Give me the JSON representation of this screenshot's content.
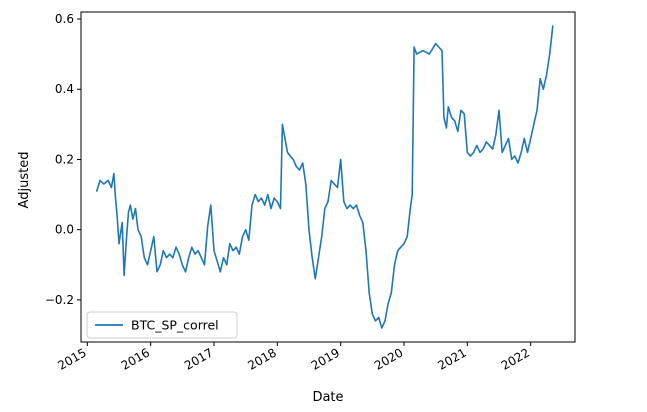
{
  "chart_data": {
    "type": "line",
    "title": "",
    "xlabel": "Date",
    "ylabel": "Adjusted",
    "x_tick_labels": [
      "2015",
      "2016",
      "2017",
      "2018",
      "2019",
      "2020",
      "2021",
      "2022"
    ],
    "y_tick_labels": [
      "−0.2",
      "0.0",
      "0.2",
      "0.4",
      "0.6"
    ],
    "y_ticks": [
      -0.2,
      0.0,
      0.2,
      0.4,
      0.6
    ],
    "x_tick_years": [
      2015,
      2016,
      2017,
      2018,
      2019,
      2020,
      2021,
      2022
    ],
    "xlim": [
      2014.9,
      2022.7
    ],
    "ylim": [
      -0.32,
      0.62
    ],
    "grid": false,
    "legend": {
      "placement": "lower-left",
      "entries": [
        "BTC_SP_correl"
      ]
    },
    "colors": {
      "series": "#1f77b4",
      "axes": "#000000",
      "legend_border": "#cccccc"
    },
    "series": [
      {
        "name": "BTC_SP_correl",
        "x": [
          2015.15,
          2015.2,
          2015.26,
          2015.33,
          2015.38,
          2015.42,
          2015.44,
          2015.47,
          2015.5,
          2015.55,
          2015.58,
          2015.62,
          2015.65,
          2015.68,
          2015.72,
          2015.76,
          2015.8,
          2015.85,
          2015.9,
          2015.95,
          2016.0,
          2016.05,
          2016.1,
          2016.15,
          2016.2,
          2016.25,
          2016.3,
          2016.35,
          2016.4,
          2016.45,
          2016.5,
          2016.55,
          2016.6,
          2016.65,
          2016.7,
          2016.75,
          2016.8,
          2016.85,
          2016.9,
          2016.95,
          2017.0,
          2017.05,
          2017.1,
          2017.15,
          2017.2,
          2017.25,
          2017.3,
          2017.35,
          2017.4,
          2017.45,
          2017.5,
          2017.55,
          2017.6,
          2017.65,
          2017.7,
          2017.75,
          2017.8,
          2017.85,
          2017.9,
          2017.95,
          2018.0,
          2018.05,
          2018.08,
          2018.12,
          2018.16,
          2018.2,
          2018.25,
          2018.3,
          2018.35,
          2018.4,
          2018.45,
          2018.5,
          2018.55,
          2018.6,
          2018.65,
          2018.7,
          2018.75,
          2018.8,
          2018.85,
          2018.9,
          2018.95,
          2019.0,
          2019.05,
          2019.1,
          2019.15,
          2019.2,
          2019.25,
          2019.3,
          2019.35,
          2019.4,
          2019.45,
          2019.5,
          2019.55,
          2019.6,
          2019.65,
          2019.7,
          2019.75,
          2019.8,
          2019.85,
          2019.9,
          2019.95,
          2020.0,
          2020.05,
          2020.1,
          2020.13,
          2020.16,
          2020.2,
          2020.3,
          2020.4,
          2020.5,
          2020.55,
          2020.6,
          2020.63,
          2020.67,
          2020.7,
          2020.75,
          2020.8,
          2020.85,
          2020.9,
          2020.95,
          2021.0,
          2021.05,
          2021.1,
          2021.15,
          2021.2,
          2021.25,
          2021.3,
          2021.35,
          2021.4,
          2021.45,
          2021.5,
          2021.55,
          2021.6,
          2021.65,
          2021.7,
          2021.75,
          2021.8,
          2021.85,
          2021.9,
          2021.95,
          2022.0,
          2022.05,
          2022.1,
          2022.15,
          2022.2,
          2022.25,
          2022.3,
          2022.35
        ],
        "values": [
          0.11,
          0.14,
          0.13,
          0.14,
          0.12,
          0.16,
          0.1,
          0.04,
          -0.04,
          0.02,
          -0.13,
          -0.02,
          0.05,
          0.07,
          0.03,
          0.06,
          0.0,
          -0.02,
          -0.08,
          -0.1,
          -0.06,
          -0.02,
          -0.12,
          -0.1,
          -0.06,
          -0.08,
          -0.07,
          -0.08,
          -0.05,
          -0.07,
          -0.1,
          -0.12,
          -0.08,
          -0.05,
          -0.07,
          -0.06,
          -0.08,
          -0.1,
          0.01,
          0.07,
          -0.06,
          -0.09,
          -0.12,
          -0.08,
          -0.1,
          -0.04,
          -0.06,
          -0.05,
          -0.07,
          -0.02,
          0.0,
          -0.03,
          0.07,
          0.1,
          0.08,
          0.09,
          0.07,
          0.1,
          0.06,
          0.09,
          0.08,
          0.06,
          0.3,
          0.26,
          0.22,
          0.21,
          0.2,
          0.18,
          0.17,
          0.19,
          0.13,
          0.0,
          -0.08,
          -0.14,
          -0.08,
          -0.02,
          0.06,
          0.08,
          0.14,
          0.13,
          0.12,
          0.2,
          0.08,
          0.06,
          0.07,
          0.06,
          0.07,
          0.04,
          0.02,
          -0.06,
          -0.18,
          -0.24,
          -0.26,
          -0.25,
          -0.28,
          -0.26,
          -0.21,
          -0.18,
          -0.1,
          -0.06,
          -0.05,
          -0.04,
          -0.02,
          0.06,
          0.1,
          0.52,
          0.5,
          0.51,
          0.5,
          0.53,
          0.52,
          0.51,
          0.32,
          0.29,
          0.35,
          0.32,
          0.31,
          0.28,
          0.34,
          0.33,
          0.22,
          0.21,
          0.22,
          0.24,
          0.22,
          0.23,
          0.25,
          0.24,
          0.23,
          0.27,
          0.34,
          0.22,
          0.24,
          0.26,
          0.2,
          0.21,
          0.19,
          0.22,
          0.26,
          0.22,
          0.26,
          0.3,
          0.34,
          0.43,
          0.4,
          0.44,
          0.5,
          0.58
        ]
      }
    ]
  }
}
